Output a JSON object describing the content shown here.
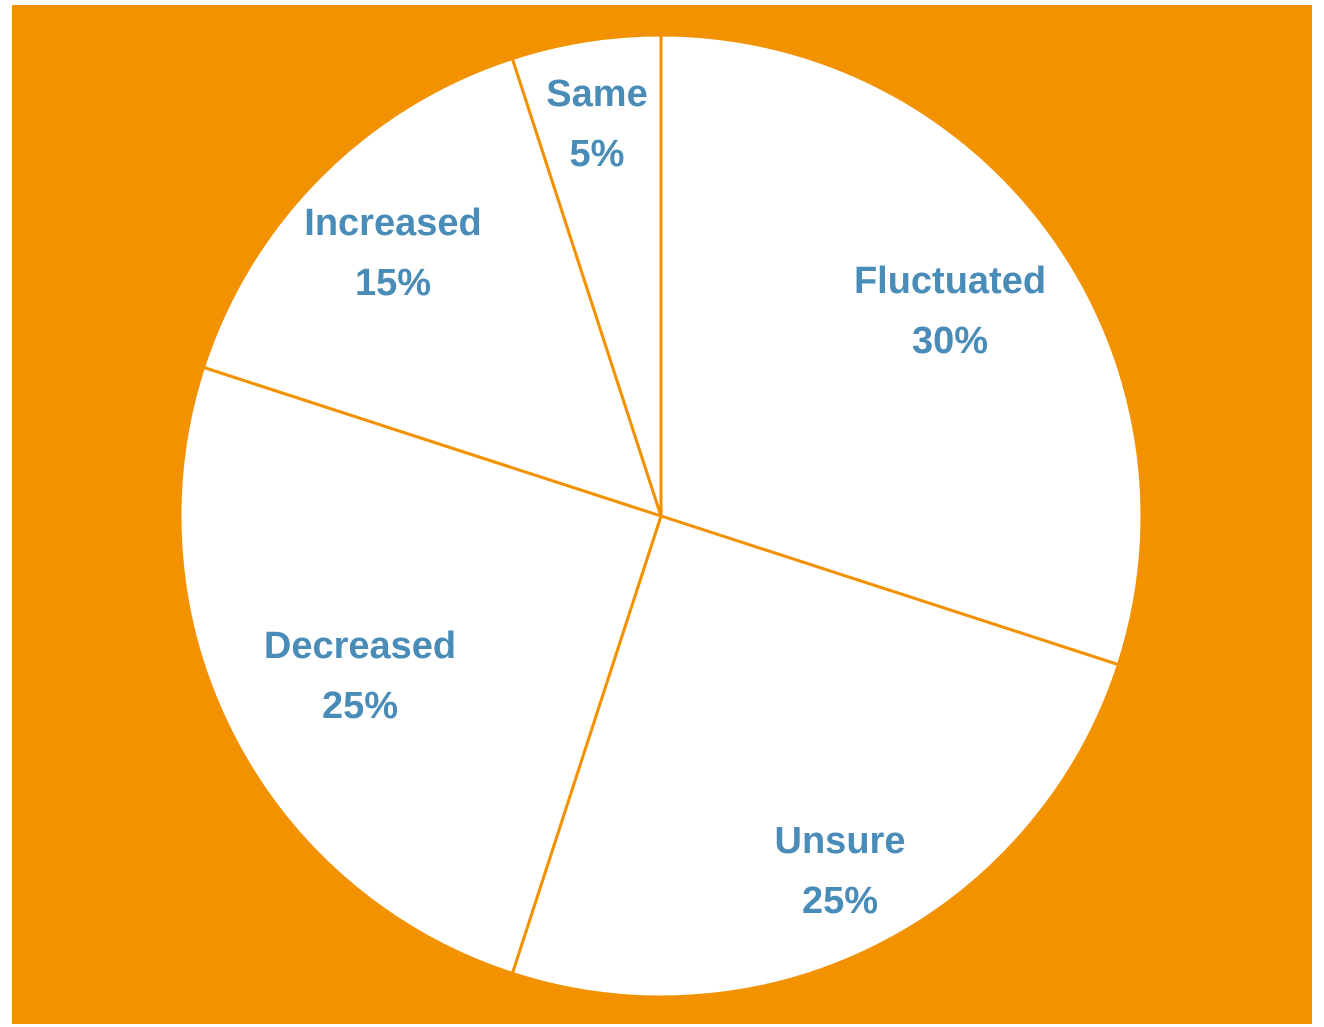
{
  "colors": {
    "background": "#F39200",
    "slice_fill": "#FFFFFF",
    "slice_border": "#F39200",
    "label_text": "#4A8CB8"
  },
  "chart_data": {
    "type": "pie",
    "start_angle_deg": 0,
    "direction": "clockwise",
    "legend": "none",
    "slices": [
      {
        "label": "Fluctuated",
        "value": 30,
        "display": "30%"
      },
      {
        "label": "Unsure",
        "value": 25,
        "display": "25%"
      },
      {
        "label": "Decreased",
        "value": 25,
        "display": "25%"
      },
      {
        "label": "Increased",
        "value": 15,
        "display": "15%"
      },
      {
        "label": "Same",
        "value": 5,
        "display": "5%"
      }
    ]
  }
}
